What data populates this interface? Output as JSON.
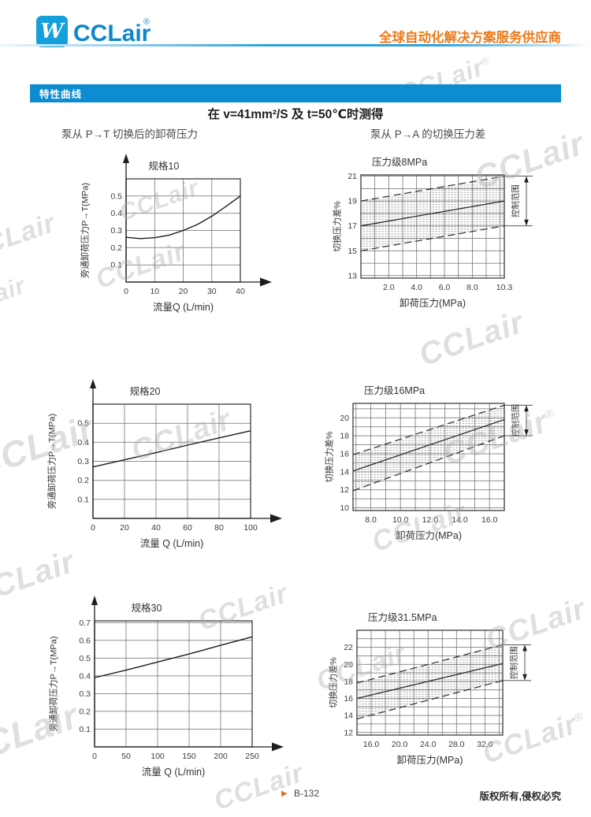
{
  "header": {
    "logo_mark": "W",
    "logo_text": "CCLair",
    "logo_reg": "®",
    "tagline": "全球自动化解决方案服务供应商"
  },
  "banner": {
    "label": "特性曲线"
  },
  "main": {
    "condition_title": "在 v=41mm²/S 及 t=50℃时测得",
    "left_subtitle": "泵从 P→T 切换后的卸荷压力",
    "right_subtitle": "泵从 P→A 的切换压力差"
  },
  "watermark_text": "CCLair",
  "watermark_reg": "®",
  "footer": {
    "marker": "▶",
    "page_number": "B-132",
    "copyright": "版权所有,侵权必究"
  },
  "chart_data": [
    {
      "type": "line",
      "title": "规格10",
      "xlabel": "流量Q (L/min)",
      "ylabel": "旁通卸荷压力P→T(MPa)",
      "xlim": [
        0,
        40
      ],
      "ylim": [
        0,
        0.6
      ],
      "xticks": [
        [
          0,
          "0"
        ],
        [
          10,
          "10"
        ],
        [
          20,
          "20"
        ],
        [
          30,
          "30"
        ],
        [
          40,
          "40"
        ]
      ],
      "yticks": [
        [
          0.1,
          "0.1"
        ],
        [
          0.2,
          "0.2"
        ],
        [
          0.3,
          "0.3"
        ],
        [
          0.4,
          "0.4"
        ],
        [
          0.5,
          "0.5"
        ]
      ],
      "grid_x": [
        10,
        20,
        30,
        40
      ],
      "grid_y": [
        0.1,
        0.2,
        0.3,
        0.4,
        0.5
      ],
      "points": [
        [
          0,
          0.26
        ],
        [
          5,
          0.253
        ],
        [
          10,
          0.258
        ],
        [
          15,
          0.272
        ],
        [
          20,
          0.3
        ],
        [
          25,
          0.335
        ],
        [
          30,
          0.383
        ],
        [
          35,
          0.44
        ],
        [
          40,
          0.5
        ]
      ]
    },
    {
      "type": "band",
      "title": "压力级8MPa",
      "xlabel": "卸荷压力(MPa)",
      "ylabel": "切换压力差%",
      "annotation": "控制范围",
      "xlim": [
        0,
        10.3
      ],
      "ylim": [
        12.8,
        21.1
      ],
      "xticks": [
        [
          2,
          "2.0"
        ],
        [
          4,
          "4.0"
        ],
        [
          6,
          "6.0"
        ],
        [
          8,
          "8.0"
        ],
        [
          10.3,
          "10.3"
        ]
      ],
      "yticks": [
        [
          13,
          "13"
        ],
        [
          15,
          "15"
        ],
        [
          17,
          "17"
        ],
        [
          19,
          "19"
        ],
        [
          21,
          "21"
        ]
      ],
      "grid_x": [
        1,
        2,
        3,
        4,
        5,
        6,
        7,
        8,
        9,
        10
      ],
      "grid_y": [
        13,
        14,
        15,
        16,
        17,
        18,
        19,
        20,
        21
      ],
      "lower": [
        [
          0,
          15
        ],
        [
          10.3,
          17
        ]
      ],
      "middle": [
        [
          0,
          17
        ],
        [
          10.3,
          19
        ]
      ],
      "upper": [
        [
          0,
          19
        ],
        [
          10.3,
          21
        ]
      ],
      "control_range": [
        17,
        21
      ]
    },
    {
      "type": "line",
      "title": "规格20",
      "xlabel": "流量 Q (L/min)",
      "ylabel": "旁通卸荷压力P→T(MPa)",
      "xlim": [
        0,
        100
      ],
      "ylim": [
        0,
        0.6
      ],
      "xticks": [
        [
          0,
          "0"
        ],
        [
          20,
          "20"
        ],
        [
          40,
          "40"
        ],
        [
          60,
          "60"
        ],
        [
          80,
          "80"
        ],
        [
          100,
          "100"
        ]
      ],
      "yticks": [
        [
          0.1,
          "0.1"
        ],
        [
          0.2,
          "0.2"
        ],
        [
          0.3,
          "0.3"
        ],
        [
          0.4,
          "0.4"
        ],
        [
          0.5,
          "0.5"
        ]
      ],
      "grid_x": [
        20,
        40,
        60,
        80
      ],
      "grid_y": [
        0.1,
        0.2,
        0.3,
        0.4,
        0.5
      ],
      "points": [
        [
          0,
          0.27
        ],
        [
          20,
          0.308
        ],
        [
          40,
          0.345
        ],
        [
          60,
          0.385
        ],
        [
          80,
          0.423
        ],
        [
          100,
          0.46
        ]
      ]
    },
    {
      "type": "band",
      "title": "压力级16MPa",
      "xlabel": "卸荷压力(MPa)",
      "ylabel": "切换压力差%",
      "annotation": "控制范围",
      "xlim": [
        6.8,
        17
      ],
      "ylim": [
        9.7,
        21.6
      ],
      "xticks": [
        [
          8,
          "8.0"
        ],
        [
          10,
          "10.0"
        ],
        [
          12,
          "12.0"
        ],
        [
          14,
          "14.0"
        ],
        [
          16,
          "16.0"
        ]
      ],
      "yticks": [
        [
          10,
          "10"
        ],
        [
          12,
          "12"
        ],
        [
          14,
          "14"
        ],
        [
          16,
          "16"
        ],
        [
          18,
          "18"
        ],
        [
          20,
          "20"
        ]
      ],
      "grid_x": [
        7,
        8,
        9,
        10,
        11,
        12,
        13,
        14,
        15,
        16
      ],
      "grid_y": [
        10,
        11,
        12,
        13,
        14,
        15,
        16,
        17,
        18,
        19,
        20,
        21
      ],
      "lower": [
        [
          6.8,
          11.9
        ],
        [
          17,
          18
        ]
      ],
      "middle": [
        [
          6.8,
          14.1
        ],
        [
          17,
          19.8
        ]
      ],
      "upper": [
        [
          6.8,
          15.9
        ],
        [
          17,
          21.4
        ]
      ],
      "control_range": [
        18,
        21.4
      ]
    },
    {
      "type": "line",
      "title": "规格30",
      "xlabel": "流量 Q (L/min)",
      "ylabel": "旁通卸荷压力P→T(MPa)",
      "xlim": [
        0,
        250
      ],
      "ylim": [
        0,
        0.71
      ],
      "xticks": [
        [
          0,
          "0"
        ],
        [
          50,
          "50"
        ],
        [
          100,
          "100"
        ],
        [
          150,
          "150"
        ],
        [
          200,
          "200"
        ],
        [
          250,
          "250"
        ]
      ],
      "yticks": [
        [
          0.1,
          "0.1"
        ],
        [
          0.2,
          "0.2"
        ],
        [
          0.3,
          "0.3"
        ],
        [
          0.4,
          "0.4"
        ],
        [
          0.5,
          "0.5"
        ],
        [
          0.6,
          "0.6"
        ],
        [
          0.7,
          "0.7"
        ]
      ],
      "grid_x": [
        50,
        100,
        150,
        200
      ],
      "grid_y": [
        0.1,
        0.2,
        0.3,
        0.4,
        0.5,
        0.6,
        0.7
      ],
      "points": [
        [
          0,
          0.39
        ],
        [
          50,
          0.432
        ],
        [
          100,
          0.478
        ],
        [
          150,
          0.523
        ],
        [
          200,
          0.572
        ],
        [
          250,
          0.62
        ]
      ]
    },
    {
      "type": "band",
      "title": "压力级31.5MPa",
      "xlabel": "卸荷压力(MPa)",
      "ylabel": "切换压力差%",
      "annotation": "控制范围",
      "xlim": [
        14,
        34.5
      ],
      "ylim": [
        11.7,
        24
      ],
      "xticks": [
        [
          16,
          "16.0"
        ],
        [
          20,
          "20.0"
        ],
        [
          24,
          "24.0"
        ],
        [
          28,
          "28.0"
        ],
        [
          32,
          "32.0"
        ]
      ],
      "yticks": [
        [
          12,
          "12"
        ],
        [
          14,
          "14"
        ],
        [
          16,
          "16"
        ],
        [
          18,
          "18"
        ],
        [
          20,
          "20"
        ],
        [
          22,
          "22"
        ]
      ],
      "grid_x": [
        16,
        18,
        20,
        22,
        24,
        26,
        28,
        30,
        32,
        34
      ],
      "grid_y": [
        12,
        13,
        14,
        15,
        16,
        17,
        18,
        19,
        20,
        21,
        22,
        23
      ],
      "lower": [
        [
          14,
          13.6
        ],
        [
          34.5,
          18.1
        ]
      ],
      "middle": [
        [
          14,
          16
        ],
        [
          34.5,
          20.1
        ]
      ],
      "upper": [
        [
          14,
          17.8
        ],
        [
          34.5,
          22.3
        ]
      ],
      "control_range": [
        18.1,
        22.3
      ]
    }
  ]
}
